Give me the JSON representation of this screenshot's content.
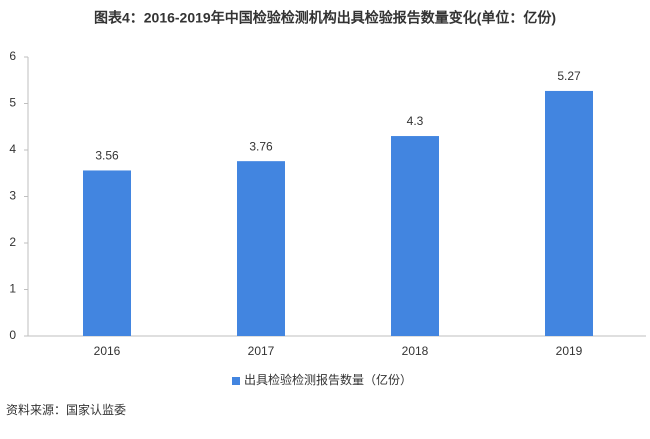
{
  "chart_data": {
    "type": "bar",
    "title": "图表4：2016-2019年中国检验检测机构出具检验报告数量变化(单位：亿份)",
    "categories": [
      "2016",
      "2017",
      "2018",
      "2019"
    ],
    "series": [
      {
        "name": "出具检验检测报告数量（亿份）",
        "color": "#4285e0",
        "values": [
          3.56,
          3.76,
          4.3,
          5.27
        ]
      }
    ],
    "ylim": [
      0,
      6
    ],
    "yticks": [
      0,
      1,
      2,
      3,
      4,
      5,
      6
    ],
    "grid": false,
    "legend": "bottom",
    "source": "资料来源：国家认监委"
  }
}
